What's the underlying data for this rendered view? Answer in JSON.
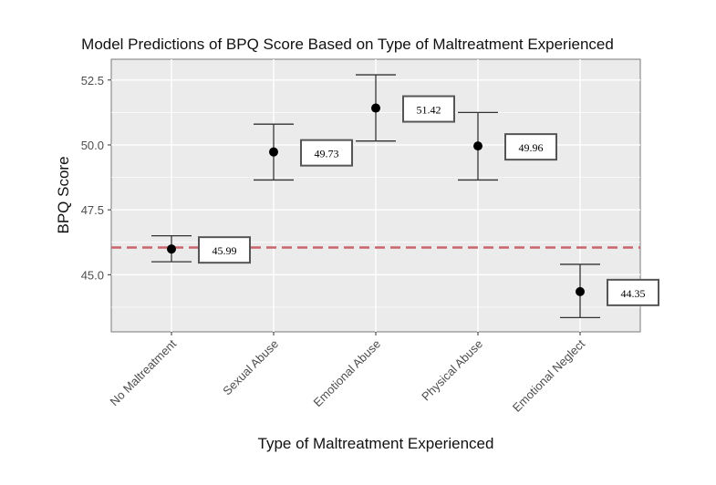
{
  "chart_data": {
    "type": "scatter",
    "title": "Model Predictions of BPQ Score Based on Type of Maltreatment Experienced",
    "xlabel": "Type of Maltreatment Experienced",
    "ylabel": "BPQ Score",
    "categories": [
      "No Maltreatment",
      "Sexual Abuse",
      "Emotional Abuse",
      "Physical Abuse",
      "Emotional Neglect"
    ],
    "values": [
      45.99,
      49.73,
      51.42,
      49.96,
      44.35
    ],
    "lower": [
      45.5,
      48.65,
      50.15,
      48.65,
      43.35
    ],
    "upper": [
      46.5,
      50.8,
      52.7,
      51.25,
      45.4
    ],
    "data_labels": [
      "45.99",
      "49.73",
      "51.42",
      "49.96",
      "44.35"
    ],
    "ylim": [
      42.8,
      53.3
    ],
    "yticks": [
      45.0,
      47.5,
      50.0,
      52.5
    ],
    "ytick_labels": [
      "45.0",
      "47.5",
      "50.0",
      "52.5"
    ],
    "reference_line": 46.05,
    "grid": true,
    "colors": {
      "panel": "#ebebeb",
      "grid": "#ffffff",
      "reference": "#c9656d",
      "point": "#000000",
      "errorbar": "#333333"
    }
  }
}
